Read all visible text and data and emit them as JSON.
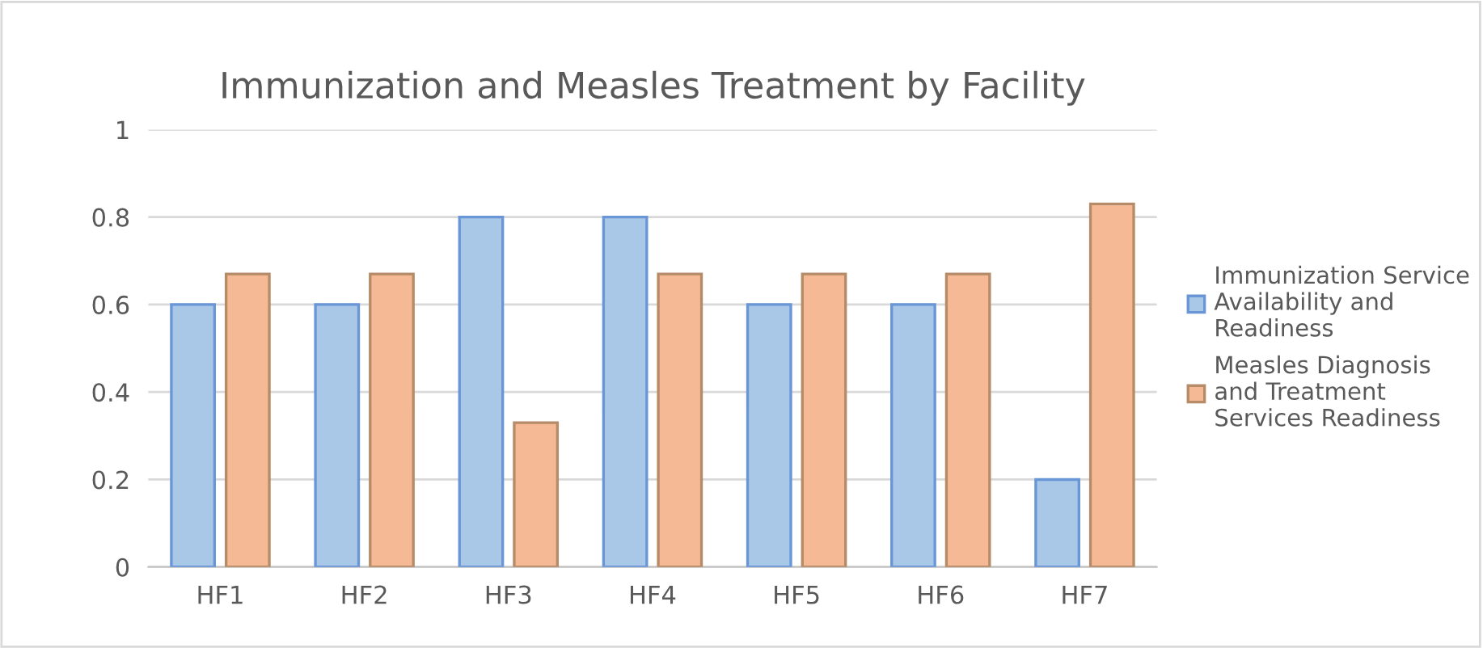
{
  "chart_data": {
    "type": "bar",
    "title": "Immunization and Measles Treatment by Facility",
    "categories": [
      "HF1",
      "HF2",
      "HF3",
      "HF4",
      "HF5",
      "HF6",
      "HF7"
    ],
    "series": [
      {
        "name": "Immunization Service\nAvailability and\nReadiness",
        "color": "#a9c8e8",
        "values": [
          0.6,
          0.6,
          0.8,
          0.8,
          0.6,
          0.6,
          0.2
        ]
      },
      {
        "name": "Measles Diagnosis\nand Treatment\nServices Readiness",
        "color": "#f6b995",
        "values": [
          0.67,
          0.67,
          0.33,
          0.67,
          0.67,
          0.67,
          0.83
        ]
      }
    ],
    "ylim": [
      0,
      1
    ],
    "yticks": [
      0,
      0.2,
      0.4,
      0.6,
      0.8,
      1
    ],
    "grid": "y",
    "legend": "right"
  }
}
